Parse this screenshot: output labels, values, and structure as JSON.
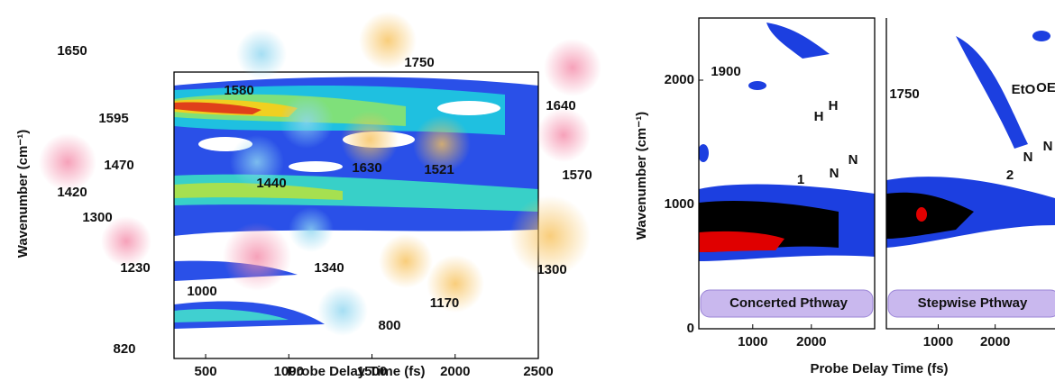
{
  "chart_data": [
    {
      "type": "contour",
      "xlabel": "Probe Delay Time (fs)",
      "ylabel": "Wavenumber (cm⁻¹)",
      "xlim": [
        310,
        2500
      ],
      "xticks": [
        500,
        1000,
        1500,
        2000,
        2500
      ],
      "annotations": [
        "1650",
        "1595",
        "1580",
        "1750",
        "1640",
        "1470",
        "1420",
        "1440",
        "1630",
        "1521",
        "1570",
        "1300",
        "1230",
        "1340",
        "1000",
        "1300",
        "1170",
        "820",
        "800"
      ]
    },
    {
      "type": "contour",
      "ylabel": "Wavenumber (cm⁻¹)",
      "xlim": [
        80,
        3080
      ],
      "xticks": [
        1000,
        2000
      ],
      "ylim": [
        0,
        2500
      ],
      "yticks": [
        0,
        1000,
        2000
      ],
      "annotations": [
        "1900"
      ],
      "caption": "Concerted Pthway",
      "structure_labels": [
        "H",
        "H",
        "N",
        "N",
        "1"
      ]
    },
    {
      "type": "contour",
      "xlabel": "Probe Delay Time (fs)",
      "xlim": [
        90,
        3050
      ],
      "xticks": [
        1000,
        2000
      ],
      "ylim": [
        0,
        2500
      ],
      "annotations": [
        "1750"
      ],
      "caption": "Stepwise Pthway",
      "structure_labels": [
        "EtO",
        "OE",
        "N",
        "N",
        "2"
      ]
    }
  ]
}
